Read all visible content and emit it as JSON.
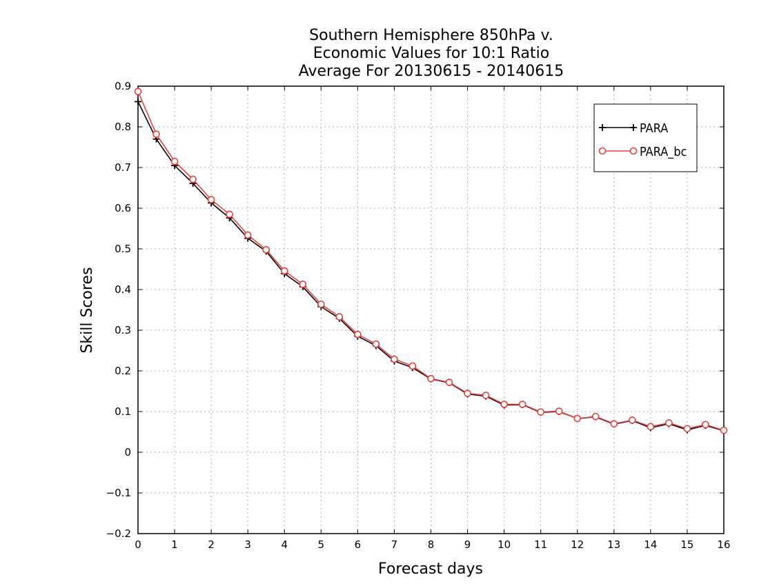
{
  "chart_data": {
    "type": "line",
    "title_lines": [
      "Southern Hemisphere 850hPa v.",
      "Economic Values for 10:1 Ratio",
      "Average For 20130615 - 20140615"
    ],
    "xlabel": "Forecast days",
    "ylabel": "Skill Scores",
    "xlim": [
      0,
      16
    ],
    "ylim": [
      -0.2,
      0.9
    ],
    "x_ticks": [
      0,
      1,
      2,
      3,
      4,
      5,
      6,
      7,
      8,
      9,
      10,
      11,
      12,
      13,
      14,
      15,
      16
    ],
    "x_tick_labels": [
      "0",
      "1",
      "2",
      "3",
      "4",
      "5",
      "6",
      "7",
      "8",
      "9",
      "10",
      "11",
      "12",
      "13",
      "14",
      "15",
      "16"
    ],
    "y_ticks": [
      -0.2,
      -0.1,
      0,
      0.1,
      0.2,
      0.3,
      0.4,
      0.5,
      0.6,
      0.7,
      0.8,
      0.9
    ],
    "y_tick_labels": [
      "−0.2",
      "−0.1",
      "0",
      "0.1",
      "0.2",
      "0.3",
      "0.4",
      "0.5",
      "0.6",
      "0.7",
      "0.8",
      "0.9"
    ],
    "grid": true,
    "legend_position": "top-right",
    "x": [
      0,
      0.5,
      1,
      1.5,
      2,
      2.5,
      3,
      3.5,
      4,
      4.5,
      5,
      5.5,
      6,
      6.5,
      7,
      7.5,
      8,
      8.5,
      9,
      9.5,
      10,
      10.5,
      11,
      11.5,
      12,
      12.5,
      13,
      13.5,
      14,
      14.5,
      15,
      15.5,
      16
    ],
    "series": [
      {
        "name": "PARA",
        "color": "#000000",
        "marker": "plus",
        "values": [
          0.862,
          0.77,
          0.705,
          0.661,
          0.613,
          0.576,
          0.526,
          0.494,
          0.439,
          0.407,
          0.358,
          0.329,
          0.285,
          0.262,
          0.224,
          0.208,
          0.18,
          0.171,
          0.143,
          0.138,
          0.116,
          0.117,
          0.098,
          0.1,
          0.083,
          0.087,
          0.069,
          0.078,
          0.06,
          0.07,
          0.055,
          0.066,
          0.053
        ]
      },
      {
        "name": "PARA_bc",
        "color": "#e8413c",
        "marker": "circle",
        "values": [
          0.887,
          0.782,
          0.715,
          0.671,
          0.621,
          0.585,
          0.534,
          0.498,
          0.446,
          0.413,
          0.364,
          0.333,
          0.29,
          0.266,
          0.229,
          0.212,
          0.181,
          0.172,
          0.145,
          0.14,
          0.118,
          0.118,
          0.099,
          0.101,
          0.083,
          0.088,
          0.07,
          0.079,
          0.063,
          0.072,
          0.058,
          0.068,
          0.054
        ]
      }
    ]
  }
}
